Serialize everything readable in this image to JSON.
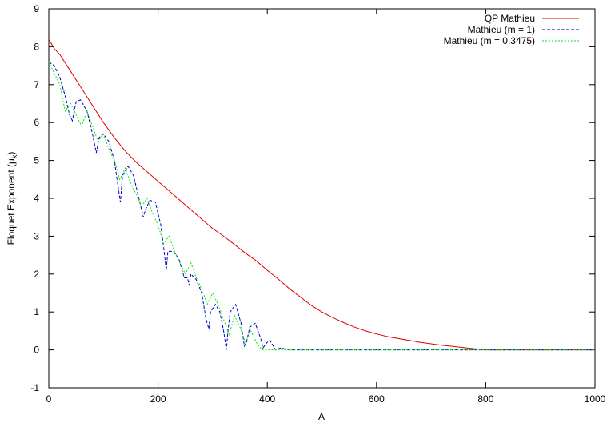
{
  "chart_data": {
    "type": "line",
    "xlabel": "A",
    "ylabel": "Floquet Exponent (μ",
    "ylabel_sub": "k",
    "ylabel_close": ")",
    "xlim": [
      0,
      1000
    ],
    "ylim": [
      -1,
      9
    ],
    "xticks": [
      0,
      200,
      400,
      600,
      800,
      1000
    ],
    "yticks": [
      -1,
      0,
      1,
      2,
      3,
      4,
      5,
      6,
      7,
      8,
      9
    ],
    "grid": false,
    "legend_position": "top-right",
    "series": [
      {
        "name": "QP Mathieu",
        "color": "#e00000",
        "dash": "solid",
        "x": [
          0,
          10,
          20,
          40,
          60,
          80,
          100,
          120,
          140,
          160,
          180,
          200,
          220,
          240,
          260,
          280,
          300,
          320,
          340,
          360,
          380,
          400,
          420,
          440,
          460,
          480,
          500,
          520,
          540,
          560,
          580,
          600,
          620,
          640,
          660,
          680,
          700,
          720,
          740,
          760,
          780,
          800,
          820,
          850,
          900,
          950,
          1000
        ],
        "y": [
          8.2,
          7.95,
          7.8,
          7.35,
          6.9,
          6.45,
          6.0,
          5.6,
          5.25,
          4.95,
          4.7,
          4.45,
          4.2,
          3.95,
          3.7,
          3.45,
          3.2,
          3.0,
          2.78,
          2.55,
          2.35,
          2.1,
          1.87,
          1.62,
          1.4,
          1.18,
          1.0,
          0.85,
          0.72,
          0.6,
          0.5,
          0.42,
          0.35,
          0.3,
          0.25,
          0.2,
          0.16,
          0.12,
          0.09,
          0.06,
          0.03,
          0.0,
          0.0,
          0.0,
          0.0,
          0.0,
          0.0
        ]
      },
      {
        "name": "Mathieu (m = 1)",
        "color": "#0000cc",
        "dash": "dashed",
        "x": [
          0,
          10,
          20,
          30,
          38,
          43,
          50,
          58,
          70,
          80,
          87,
          92,
          100,
          110,
          120,
          128,
          131,
          135,
          145,
          155,
          165,
          173,
          177,
          185,
          195,
          205,
          212,
          215,
          218,
          228,
          238,
          248,
          254,
          257,
          260,
          270,
          280,
          288,
          293,
          296,
          305,
          313,
          320,
          325,
          328,
          332,
          342,
          352,
          358,
          362,
          368,
          378,
          388,
          392,
          400,
          405,
          415,
          425,
          440,
          500,
          600,
          700,
          800,
          900,
          1000
        ],
        "y": [
          7.6,
          7.5,
          7.2,
          6.7,
          6.2,
          6.05,
          6.55,
          6.6,
          6.3,
          5.7,
          5.2,
          5.6,
          5.7,
          5.5,
          5.0,
          4.2,
          3.9,
          4.6,
          4.85,
          4.6,
          4.0,
          3.5,
          3.7,
          3.95,
          3.9,
          3.3,
          2.5,
          2.1,
          2.6,
          2.6,
          2.4,
          1.9,
          1.9,
          1.7,
          2.0,
          1.85,
          1.5,
          0.8,
          0.55,
          1.0,
          1.2,
          1.0,
          0.5,
          0.0,
          0.5,
          1.0,
          1.2,
          0.7,
          0.1,
          0.2,
          0.6,
          0.7,
          0.3,
          0.05,
          0.2,
          0.25,
          0.0,
          0.05,
          0.0,
          0.0,
          0.0,
          0.0,
          0.0,
          0.0,
          0.0
        ]
      },
      {
        "name": "Mathieu (m = 0.3475)",
        "color": "#00ee00",
        "dash": "dotted",
        "x": [
          0,
          10,
          20,
          30,
          40,
          50,
          60,
          70,
          80,
          90,
          100,
          110,
          120,
          130,
          140,
          150,
          160,
          170,
          180,
          190,
          200,
          210,
          220,
          230,
          240,
          250,
          260,
          270,
          280,
          290,
          300,
          310,
          320,
          330,
          340,
          350,
          360,
          370,
          380,
          390,
          400,
          420,
          500,
          600,
          700,
          800,
          900,
          1000
        ],
        "y": [
          7.6,
          7.3,
          7.0,
          6.3,
          6.5,
          6.2,
          5.9,
          6.3,
          5.9,
          5.5,
          5.7,
          5.3,
          5.0,
          4.5,
          4.8,
          4.4,
          4.1,
          3.8,
          4.0,
          3.6,
          3.3,
          2.8,
          3.0,
          2.6,
          2.3,
          2.0,
          2.3,
          1.9,
          1.6,
          1.2,
          1.5,
          1.2,
          0.8,
          0.4,
          0.9,
          0.6,
          0.2,
          0.5,
          0.2,
          0.0,
          0.0,
          0.0,
          0.0,
          0.0,
          0.0,
          0.0,
          0.0,
          0.0
        ]
      }
    ]
  }
}
